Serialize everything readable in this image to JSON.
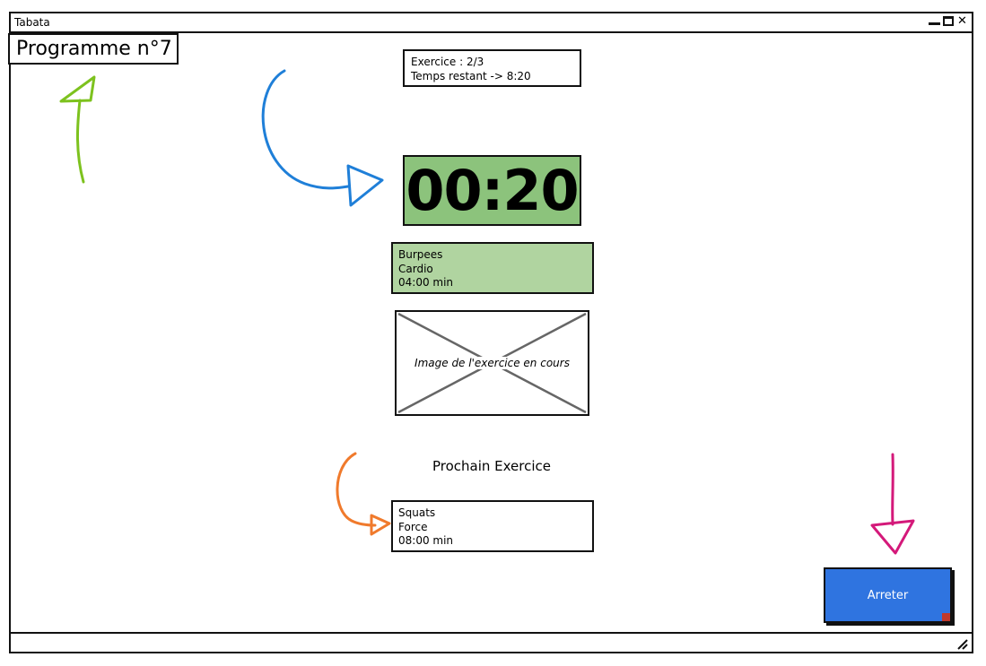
{
  "window": {
    "title": "Tabata"
  },
  "programme": {
    "title": "Programme n°7"
  },
  "progress": {
    "exercise_line": "Exercice : 2/3",
    "remaining_line": "Temps restant -> 8:20"
  },
  "timer": {
    "value": "00:20",
    "color": "#8cc37c"
  },
  "current_exercise": {
    "name": "Burpees",
    "category": "Cardio",
    "duration": "04:00 min",
    "color": "#b0d4a0"
  },
  "image": {
    "caption": "Image de l'exercice en cours"
  },
  "next": {
    "heading": "Prochain Exercice",
    "name": "Squats",
    "category": "Force",
    "duration": "08:00 min"
  },
  "actions": {
    "stop_label": "Arreter",
    "stop_color": "#2f74e0"
  },
  "annotations": {
    "arrow_colors": {
      "green": "#7dc21e",
      "blue": "#1f7fd8",
      "orange": "#f07a2c",
      "magenta": "#d4197a"
    }
  }
}
